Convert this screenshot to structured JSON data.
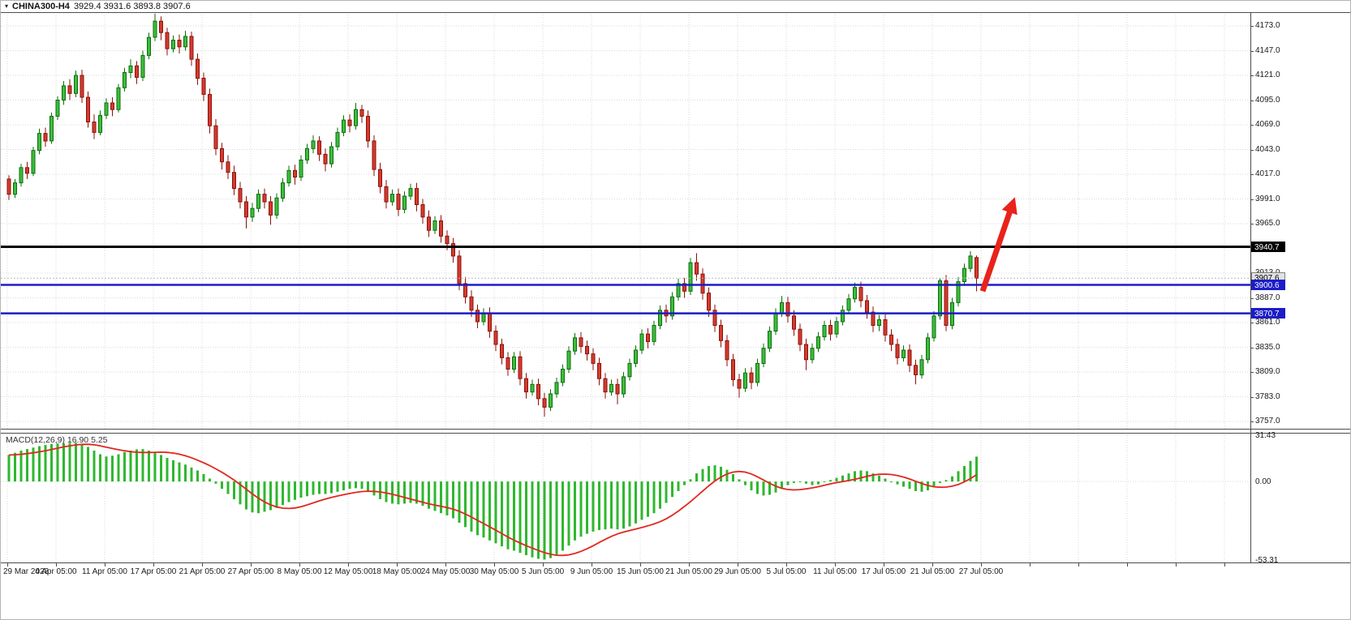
{
  "window": {
    "title_symbol": "CHINA300-H4",
    "quote_ohlc": "3929.4 3931.6 3893.8 3907.6"
  },
  "colors": {
    "grid": "#d9d9d9",
    "frame": "#4d4d4d",
    "up": "#3dbd3d",
    "up_border": "#0b6e0b",
    "down": "#d63a2f",
    "down_border": "#8a1208",
    "macd_hist": "#2eb82e",
    "macd_signal": "#e0281e",
    "arrow": "#e8231a"
  },
  "chart_data": [
    {
      "type": "candlestick",
      "title": "CHINA300-H4",
      "timeframe": "H4",
      "current_bar": {
        "open": 3929.4,
        "high": 3931.6,
        "low": 3893.8,
        "close": 3907.6
      },
      "ylim": [
        3745,
        4190
      ],
      "y_ticks": [
        "4173.0",
        "4147.0",
        "4121.0",
        "4095.0",
        "4069.0",
        "4043.0",
        "4017.0",
        "3991.0",
        "3965.0",
        "3913.0",
        "3887.0",
        "3861.0",
        "3835.0",
        "3809.0",
        "3783.0",
        "3757.0"
      ],
      "x_labels": [
        "29 Mar 2023",
        "4 Apr 05:00",
        "11 Apr 05:00",
        "17 Apr 05:00",
        "21 Apr 05:00",
        "27 Apr 05:00",
        "8 May 05:00",
        "12 May 05:00",
        "18 May 05:00",
        "24 May 05:00",
        "30 May 05:00",
        "5 Jun 05:00",
        "9 Jun 05:00",
        "15 Jun 05:00",
        "21 Jun 05:00",
        "29 Jun 05:00",
        "5 Jul 05:00",
        "11 Jul 05:00",
        "17 Jul 05:00",
        "21 Jul 05:00",
        "27 Jul 05:00"
      ],
      "levels": [
        {
          "price": 3940.7,
          "label": "3940.7",
          "color": "#000000",
          "style": "solid",
          "width": 3,
          "badge_bg": "#000000",
          "badge_fg": "#ffffff",
          "badge_border": "#000000"
        },
        {
          "price": 3907.6,
          "label": "3907.6",
          "color": "#b9b9b9",
          "style": "dashed",
          "width": 1,
          "badge_bg": "#e2e2e2",
          "badge_fg": "#000000",
          "badge_border": "#808080"
        },
        {
          "price": 3900.6,
          "label": "3900.6",
          "color": "#1c1cc8",
          "style": "solid",
          "width": 2.5,
          "badge_bg": "#1c1cc8",
          "badge_fg": "#ffffff",
          "badge_border": "#1c1cc8"
        },
        {
          "price": 3870.7,
          "label": "3870.7",
          "color": "#1c1cc8",
          "style": "solid",
          "width": 2.5,
          "badge_bg": "#1c1cc8",
          "badge_fg": "#ffffff",
          "badge_border": "#1c1cc8"
        }
      ],
      "arrow": {
        "from": {
          "bar": 160,
          "price": 3894
        },
        "to": {
          "bar": 165.3,
          "price": 3993
        }
      },
      "candles": [
        [
          4012,
          4016,
          3990,
          3996
        ],
        [
          3996,
          4012,
          3992,
          4008
        ],
        [
          4008,
          4028,
          4004,
          4024
        ],
        [
          4024,
          4030,
          4012,
          4018
        ],
        [
          4018,
          4046,
          4015,
          4042
        ],
        [
          4042,
          4065,
          4038,
          4060
        ],
        [
          4060,
          4066,
          4046,
          4052
        ],
        [
          4052,
          4082,
          4049,
          4078
        ],
        [
          4078,
          4099,
          4074,
          4095
        ],
        [
          4095,
          4115,
          4090,
          4110
        ],
        [
          4110,
          4117,
          4095,
          4102
        ],
        [
          4102,
          4126,
          4098,
          4121
        ],
        [
          4121,
          4127,
          4092,
          4098
        ],
        [
          4098,
          4104,
          4066,
          4072
        ],
        [
          4072,
          4080,
          4054,
          4061
        ],
        [
          4061,
          4084,
          4058,
          4079
        ],
        [
          4079,
          4097,
          4075,
          4092
        ],
        [
          4092,
          4098,
          4078,
          4085
        ],
        [
          4085,
          4112,
          4082,
          4108
        ],
        [
          4108,
          4129,
          4104,
          4124
        ],
        [
          4124,
          4138,
          4118,
          4131
        ],
        [
          4131,
          4136,
          4112,
          4119
        ],
        [
          4119,
          4147,
          4115,
          4142
        ],
        [
          4142,
          4166,
          4138,
          4161
        ],
        [
          4161,
          4186,
          4157,
          4178
        ],
        [
          4178,
          4183,
          4158,
          4166
        ],
        [
          4166,
          4171,
          4142,
          4149
        ],
        [
          4149,
          4163,
          4145,
          4158
        ],
        [
          4158,
          4164,
          4144,
          4151
        ],
        [
          4151,
          4168,
          4147,
          4162
        ],
        [
          4162,
          4167,
          4131,
          4138
        ],
        [
          4138,
          4144,
          4111,
          4118
        ],
        [
          4118,
          4124,
          4094,
          4101
        ],
        [
          4101,
          4107,
          4060,
          4068
        ],
        [
          4068,
          4075,
          4037,
          4044
        ],
        [
          4044,
          4050,
          4022,
          4030
        ],
        [
          4030,
          4037,
          4012,
          4019
        ],
        [
          4019,
          4026,
          3995,
          4002
        ],
        [
          4002,
          4009,
          3981,
          3988
        ],
        [
          3988,
          3994,
          3960,
          3972
        ],
        [
          3972,
          3987,
          3967,
          3981
        ],
        [
          3981,
          4001,
          3977,
          3996
        ],
        [
          3996,
          4002,
          3981,
          3988
        ],
        [
          3988,
          3994,
          3964,
          3974
        ],
        [
          3974,
          3997,
          3970,
          3992
        ],
        [
          3992,
          4013,
          3988,
          4008
        ],
        [
          4008,
          4026,
          4004,
          4021
        ],
        [
          4021,
          4027,
          4006,
          4014
        ],
        [
          4014,
          4037,
          4010,
          4032
        ],
        [
          4032,
          4049,
          4028,
          4044
        ],
        [
          4044,
          4058,
          4039,
          4052
        ],
        [
          4052,
          4057,
          4031,
          4038
        ],
        [
          4038,
          4044,
          4020,
          4028
        ],
        [
          4028,
          4051,
          4024,
          4046
        ],
        [
          4046,
          4066,
          4042,
          4061
        ],
        [
          4061,
          4079,
          4057,
          4074
        ],
        [
          4074,
          4080,
          4061,
          4068
        ],
        [
          4068,
          4092,
          4064,
          4085
        ],
        [
          4085,
          4090,
          4071,
          4078
        ],
        [
          4078,
          4084,
          4045,
          4052
        ],
        [
          4052,
          4058,
          4015,
          4022
        ],
        [
          4022,
          4029,
          3997,
          4004
        ],
        [
          4004,
          4011,
          3981,
          3988
        ],
        [
          3988,
          4001,
          3984,
          3996
        ],
        [
          3996,
          4002,
          3973,
          3980
        ],
        [
          3980,
          3999,
          3976,
          3994
        ],
        [
          3994,
          4007,
          3990,
          4002
        ],
        [
          4002,
          4008,
          3978,
          3985
        ],
        [
          3985,
          3991,
          3965,
          3972
        ],
        [
          3972,
          3979,
          3951,
          3958
        ],
        [
          3958,
          3973,
          3954,
          3968
        ],
        [
          3968,
          3974,
          3945,
          3952
        ],
        [
          3952,
          3958,
          3937,
          3944
        ],
        [
          3944,
          3950,
          3924,
          3931
        ],
        [
          3931,
          3937,
          3895,
          3902
        ],
        [
          3902,
          3909,
          3881,
          3888
        ],
        [
          3888,
          3895,
          3867,
          3874
        ],
        [
          3874,
          3880,
          3855,
          3862
        ],
        [
          3862,
          3876,
          3858,
          3871
        ],
        [
          3871,
          3877,
          3845,
          3852
        ],
        [
          3852,
          3858,
          3831,
          3838
        ],
        [
          3838,
          3844,
          3817,
          3824
        ],
        [
          3824,
          3830,
          3805,
          3812
        ],
        [
          3812,
          3830,
          3808,
          3825
        ],
        [
          3825,
          3831,
          3795,
          3802
        ],
        [
          3802,
          3808,
          3781,
          3788
        ],
        [
          3788,
          3801,
          3784,
          3796
        ],
        [
          3796,
          3802,
          3774,
          3781
        ],
        [
          3781,
          3787,
          3762,
          3772
        ],
        [
          3772,
          3791,
          3768,
          3786
        ],
        [
          3786,
          3803,
          3782,
          3798
        ],
        [
          3798,
          3817,
          3794,
          3812
        ],
        [
          3812,
          3836,
          3808,
          3831
        ],
        [
          3831,
          3850,
          3827,
          3845
        ],
        [
          3845,
          3851,
          3829,
          3836
        ],
        [
          3836,
          3842,
          3821,
          3828
        ],
        [
          3828,
          3834,
          3811,
          3818
        ],
        [
          3818,
          3824,
          3795,
          3802
        ],
        [
          3802,
          3808,
          3781,
          3788
        ],
        [
          3788,
          3801,
          3784,
          3796
        ],
        [
          3796,
          3802,
          3775,
          3786
        ],
        [
          3786,
          3809,
          3782,
          3804
        ],
        [
          3804,
          3823,
          3800,
          3818
        ],
        [
          3818,
          3837,
          3814,
          3832
        ],
        [
          3832,
          3854,
          3828,
          3849
        ],
        [
          3849,
          3855,
          3834,
          3841
        ],
        [
          3841,
          3863,
          3837,
          3858
        ],
        [
          3858,
          3879,
          3854,
          3874
        ],
        [
          3874,
          3880,
          3861,
          3868
        ],
        [
          3868,
          3893,
          3864,
          3888
        ],
        [
          3888,
          3907,
          3884,
          3902
        ],
        [
          3902,
          3908,
          3887,
          3894
        ],
        [
          3894,
          3929,
          3890,
          3924
        ],
        [
          3924,
          3934,
          3905,
          3912
        ],
        [
          3912,
          3918,
          3885,
          3892
        ],
        [
          3892,
          3898,
          3867,
          3874
        ],
        [
          3874,
          3880,
          3851,
          3858
        ],
        [
          3858,
          3864,
          3835,
          3842
        ],
        [
          3842,
          3848,
          3815,
          3822
        ],
        [
          3822,
          3828,
          3794,
          3801
        ],
        [
          3801,
          3807,
          3782,
          3792
        ],
        [
          3792,
          3813,
          3788,
          3808
        ],
        [
          3808,
          3814,
          3791,
          3798
        ],
        [
          3798,
          3823,
          3794,
          3818
        ],
        [
          3818,
          3839,
          3814,
          3834
        ],
        [
          3834,
          3857,
          3830,
          3852
        ],
        [
          3852,
          3876,
          3848,
          3871
        ],
        [
          3871,
          3889,
          3867,
          3882
        ],
        [
          3882,
          3888,
          3861,
          3868
        ],
        [
          3868,
          3874,
          3847,
          3854
        ],
        [
          3854,
          3860,
          3831,
          3838
        ],
        [
          3838,
          3844,
          3811,
          3822
        ],
        [
          3822,
          3839,
          3818,
          3834
        ],
        [
          3834,
          3851,
          3830,
          3846
        ],
        [
          3846,
          3863,
          3842,
          3858
        ],
        [
          3858,
          3864,
          3842,
          3849
        ],
        [
          3849,
          3867,
          3845,
          3862
        ],
        [
          3862,
          3879,
          3858,
          3874
        ],
        [
          3874,
          3891,
          3870,
          3886
        ],
        [
          3886,
          3903,
          3882,
          3898
        ],
        [
          3898,
          3904,
          3877,
          3884
        ],
        [
          3884,
          3890,
          3865,
          3872
        ],
        [
          3872,
          3878,
          3851,
          3858
        ],
        [
          3858,
          3869,
          3852,
          3864
        ],
        [
          3864,
          3870,
          3841,
          3848
        ],
        [
          3848,
          3854,
          3831,
          3838
        ],
        [
          3838,
          3844,
          3817,
          3824
        ],
        [
          3824,
          3837,
          3820,
          3832
        ],
        [
          3832,
          3838,
          3809,
          3816
        ],
        [
          3816,
          3822,
          3796,
          3806
        ],
        [
          3806,
          3827,
          3802,
          3822
        ],
        [
          3822,
          3850,
          3818,
          3845
        ],
        [
          3845,
          3873,
          3841,
          3868
        ],
        [
          3868,
          3908,
          3864,
          3905
        ],
        [
          3905,
          3911,
          3852,
          3858
        ],
        [
          3858,
          3887,
          3854,
          3882
        ],
        [
          3882,
          3909,
          3878,
          3904
        ],
        [
          3904,
          3923,
          3900,
          3918
        ],
        [
          3918,
          3936,
          3914,
          3931
        ],
        [
          3929.4,
          3931.6,
          3893.8,
          3907.6
        ]
      ]
    },
    {
      "type": "bar",
      "title": "MACD(12,26,9)",
      "display_values": {
        "macd": "16.90",
        "signal": "5.25"
      },
      "y_axis": {
        "max": 31.43,
        "min": -53.31,
        "top_label": "31.43",
        "zero_label": "0.00",
        "bottom_label": "-53.31"
      },
      "signal_smoothing": 9,
      "histogram": [
        18,
        19.5,
        21,
        22,
        23,
        24,
        24.8,
        25.4,
        25.8,
        26,
        26.2,
        26.3,
        25.5,
        23.5,
        21,
        18.5,
        17,
        17.5,
        18.5,
        20,
        21,
        21.8,
        22,
        21,
        19.5,
        18,
        16,
        14.5,
        13,
        11.5,
        9.5,
        7.5,
        5,
        2,
        -1.5,
        -5,
        -8.5,
        -12,
        -15.5,
        -19,
        -21,
        -21.5,
        -20.5,
        -19.5,
        -18,
        -16,
        -14,
        -12.5,
        -11,
        -10,
        -9,
        -8.5,
        -8.5,
        -8,
        -7,
        -6,
        -5,
        -4.5,
        -5,
        -7,
        -9.5,
        -12,
        -14,
        -15,
        -15.5,
        -15,
        -14.5,
        -15,
        -16.5,
        -18.5,
        -20,
        -21.5,
        -23,
        -25,
        -28,
        -31,
        -34,
        -36.5,
        -38,
        -40,
        -42,
        -44,
        -46,
        -47,
        -48.5,
        -50,
        -51.5,
        -52.5,
        -53,
        -52,
        -50,
        -47,
        -43.5,
        -40,
        -37.5,
        -35.5,
        -34,
        -33,
        -32.5,
        -32,
        -32.5,
        -32,
        -30.5,
        -28.5,
        -26,
        -24,
        -21.5,
        -18.5,
        -14.5,
        -10.5,
        -6.5,
        -2.5,
        1.5,
        5.5,
        8.5,
        10.5,
        11,
        10,
        8,
        5,
        1.5,
        -2.5,
        -6,
        -8.5,
        -9.5,
        -9,
        -7.5,
        -5,
        -2.5,
        -1,
        -0.5,
        -1.5,
        -2.5,
        -2,
        -0.5,
        1,
        2.5,
        4,
        5.5,
        7,
        7.5,
        7,
        5.5,
        4,
        2,
        0,
        -2,
        -3.5,
        -5,
        -6.5,
        -7,
        -6,
        -4,
        -1,
        1,
        3.5,
        7,
        10.5,
        14,
        16.9
      ]
    }
  ]
}
